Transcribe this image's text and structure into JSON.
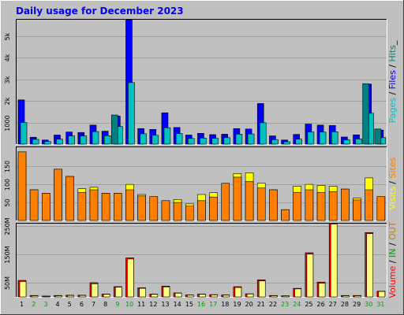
{
  "chart_data": {
    "type": "bar",
    "title": "Daily usage for December 2023",
    "x": [
      "1",
      "2",
      "3",
      "4",
      "5",
      "6",
      "7",
      "8",
      "9",
      "10",
      "11",
      "12",
      "13",
      "14",
      "15",
      "16",
      "17",
      "18",
      "19",
      "20",
      "21",
      "22",
      "23",
      "24",
      "25",
      "26",
      "27",
      "28",
      "29",
      "30",
      "31"
    ],
    "weekend_days": [
      "2",
      "3",
      "9",
      "10",
      "16",
      "17",
      "23",
      "24",
      "30",
      "31"
    ],
    "panels": [
      {
        "name": "hits-panel",
        "ylim": [
          0,
          5800
        ],
        "yticks": [
          1000,
          2000,
          3000,
          4000,
          5000
        ],
        "ytick_labels": [
          "1000",
          "2k",
          "3k",
          "4k",
          "5k"
        ],
        "legend": [
          "Pages",
          " / ",
          "Files",
          " / ",
          "Hits",
          "_"
        ],
        "series": [
          {
            "name": "Hits",
            "color": "#0000ff",
            "values": [
              2050,
              320,
              190,
              420,
              560,
              540,
              880,
              600,
              1300,
              5750,
              720,
              680,
              1450,
              770,
              420,
              500,
              440,
              460,
              720,
              700,
              1880,
              380,
              190,
              450,
              930,
              880,
              860,
              330,
              430,
              2780,
              650
            ]
          },
          {
            "name": "Files",
            "color": "#00c0c0",
            "values": [
              1000,
              220,
              120,
              230,
              380,
              380,
              580,
              390,
              820,
              2850,
              480,
              410,
              760,
              490,
              260,
              280,
              270,
              300,
              460,
              470,
              990,
              210,
              110,
              230,
              560,
              560,
              570,
              200,
              240,
              1430,
              300
            ]
          },
          {
            "name": "Pages",
            "color": "#008080",
            "values": [
              0,
              0,
              0,
              0,
              0,
              0,
              0,
              0,
              1350,
              0,
              0,
              0,
              0,
              0,
              0,
              0,
              0,
              0,
              0,
              0,
              0,
              0,
              0,
              0,
              0,
              0,
              0,
              0,
              0,
              2800,
              700
            ]
          }
        ]
      },
      {
        "name": "visits-panel",
        "ylim": [
          0,
          205
        ],
        "yticks": [
          50,
          100,
          150
        ],
        "ytick_labels": [
          "50",
          "100",
          "150"
        ],
        "legend": [
          "Visits",
          " / ",
          "Sites"
        ],
        "series": [
          {
            "name": "Visits",
            "color": "#ffff00",
            "values": [
              190,
              85,
              75,
              142,
              122,
              88,
              92,
              75,
              75,
              100,
              72,
              66,
              55,
              58,
              46,
              72,
              77,
              103,
              130,
              132,
              103,
              85,
              30,
              95,
              100,
              97,
              95,
              87,
              62,
              118,
              66
            ]
          },
          {
            "name": "Sites",
            "color": "#ff8000",
            "values": [
              190,
              85,
              75,
              142,
              122,
              78,
              85,
              75,
              75,
              85,
              68,
              66,
              55,
              50,
              40,
              55,
              65,
              103,
              120,
              108,
              90,
              85,
              30,
              78,
              85,
              78,
              80,
              87,
              57,
              85,
              66
            ]
          }
        ]
      },
      {
        "name": "volume-panel",
        "ylim": [
          0,
          260
        ],
        "yticks": [
          50,
          150,
          250
        ],
        "ytick_labels": [
          "50M",
          "150M",
          "250M"
        ],
        "legend": [
          "Volume",
          " / ",
          "IN",
          " / ",
          "OUT"
        ],
        "series": [
          {
            "name": "Volume",
            "color": "#ff0000",
            "values": [
              58,
              5,
              3,
              5,
              6,
              6,
              50,
              10,
              36,
              137,
              32,
              10,
              38,
              14,
              7,
              10,
              8,
              7,
              36,
              11,
              60,
              5,
              4,
              30,
              155,
              52,
              258,
              5,
              5,
              226,
              20
            ]
          },
          {
            "name": "OUT",
            "color": "#ffff80",
            "values": [
              54,
              4,
              2,
              4,
              5,
              5,
              46,
              9,
              34,
              133,
              30,
              9,
              35,
              13,
              6,
              9,
              7,
              6,
              33,
              10,
              56,
              4,
              3,
              28,
              150,
              48,
              256,
              4,
              4,
              222,
              19
            ]
          }
        ]
      }
    ],
    "colors": {
      "background": "#c0c0c0",
      "panel": "#c0c0c0",
      "weekday_label": "#000000",
      "weekend_label": "#00a000",
      "separator": "#000000",
      "title": "#0000ff"
    }
  }
}
